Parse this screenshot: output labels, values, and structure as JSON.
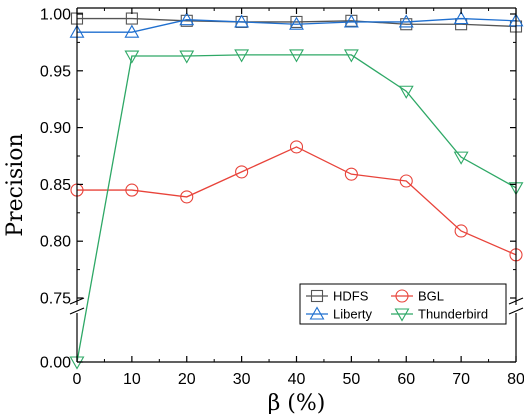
{
  "chart_data": {
    "type": "line",
    "title": "",
    "xlabel": "β (%)",
    "ylabel": "Precision",
    "x": [
      0,
      10,
      20,
      30,
      40,
      50,
      60,
      70,
      80
    ],
    "xlim": [
      0,
      80
    ],
    "x_ticks": [
      "0",
      "10",
      "20",
      "30",
      "40",
      "50",
      "60",
      "70",
      "80"
    ],
    "ylim": [
      0.0,
      1.0
    ],
    "y_axis_break": [
      0.0,
      0.75
    ],
    "y_ticks": [
      "0.00",
      "0.75",
      "0.80",
      "0.85",
      "0.90",
      "0.95",
      "1.00"
    ],
    "grid": false,
    "legend_position": "bottom-right",
    "series": [
      {
        "name": "HDFS",
        "marker": "square",
        "color": "#555555",
        "values": [
          0.996,
          0.996,
          0.994,
          0.993,
          0.993,
          0.994,
          0.991,
          0.991,
          0.989
        ]
      },
      {
        "name": "BGL",
        "marker": "circle",
        "color": "#e8433a",
        "values": [
          0.845,
          0.845,
          0.839,
          0.861,
          0.883,
          0.859,
          0.853,
          0.809,
          0.788
        ]
      },
      {
        "name": "Liberty",
        "marker": "triangle-up",
        "color": "#1f6fcf",
        "values": [
          0.984,
          0.984,
          0.995,
          0.993,
          0.991,
          0.993,
          0.993,
          0.996,
          0.994
        ]
      },
      {
        "name": "Thunderbird",
        "marker": "triangle-down",
        "color": "#2ea866",
        "values": [
          0.0,
          0.963,
          0.963,
          0.964,
          0.964,
          0.964,
          0.932,
          0.874,
          0.847
        ]
      }
    ]
  }
}
